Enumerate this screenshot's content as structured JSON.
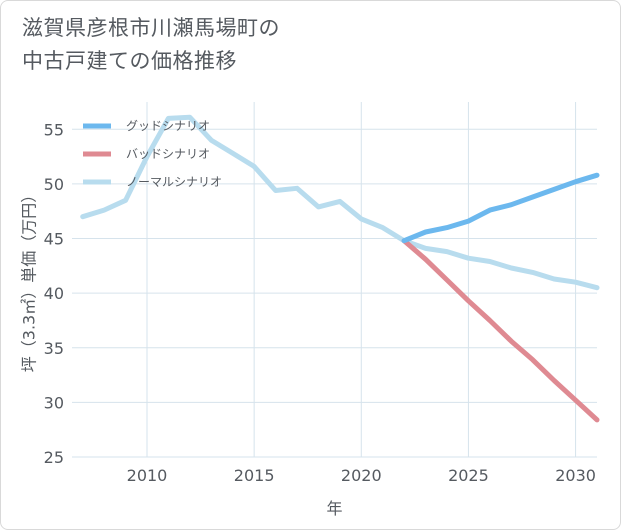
{
  "title_lines": [
    "滋賀県彦根市川瀬馬場町の",
    "中古戸建ての価格推移"
  ],
  "chart_data": {
    "type": "line",
    "xlabel": "年",
    "ylabel": "坪（3.3㎡）単価（万円）",
    "xlim": [
      2006.5,
      2031
    ],
    "ylim": [
      25,
      57.5
    ],
    "x_ticks": [
      2010,
      2015,
      2020,
      2025,
      2030
    ],
    "y_ticks": [
      25,
      30,
      35,
      40,
      45,
      50,
      55
    ],
    "grid": true,
    "legend_position": "top-left",
    "series": [
      {
        "name": "グッドシナリオ",
        "color": "#6cb8ee",
        "points": [
          [
            2022,
            44.8
          ],
          [
            2023,
            45.6
          ],
          [
            2024,
            46.0
          ],
          [
            2025,
            46.6
          ],
          [
            2026,
            47.6
          ],
          [
            2027,
            48.1
          ],
          [
            2028,
            48.8
          ],
          [
            2029,
            49.5
          ],
          [
            2030,
            50.2
          ],
          [
            2031,
            50.8
          ]
        ]
      },
      {
        "name": "バッドシナリオ",
        "color": "#df8a92",
        "points": [
          [
            2022,
            44.8
          ],
          [
            2023,
            43.1
          ],
          [
            2024,
            41.2
          ],
          [
            2025,
            39.3
          ],
          [
            2026,
            37.5
          ],
          [
            2027,
            35.6
          ],
          [
            2028,
            33.9
          ],
          [
            2029,
            32.0
          ],
          [
            2030,
            30.2
          ],
          [
            2031,
            28.4
          ]
        ]
      },
      {
        "name": "ノーマルシナリオ",
        "color": "#b8dcee",
        "points": [
          [
            2007,
            47.0
          ],
          [
            2008,
            47.6
          ],
          [
            2009,
            48.5
          ],
          [
            2010,
            52.5
          ],
          [
            2011,
            56.0
          ],
          [
            2012,
            56.1
          ],
          [
            2013,
            54.0
          ],
          [
            2014,
            52.8
          ],
          [
            2015,
            51.6
          ],
          [
            2016,
            49.4
          ],
          [
            2017,
            49.6
          ],
          [
            2018,
            47.9
          ],
          [
            2019,
            48.4
          ],
          [
            2020,
            46.8
          ],
          [
            2021,
            46.0
          ],
          [
            2022,
            44.8
          ],
          [
            2023,
            44.1
          ],
          [
            2024,
            43.8
          ],
          [
            2025,
            43.2
          ],
          [
            2026,
            42.9
          ],
          [
            2027,
            42.3
          ],
          [
            2028,
            41.9
          ],
          [
            2029,
            41.3
          ],
          [
            2030,
            41.0
          ],
          [
            2031,
            40.5
          ]
        ]
      }
    ]
  }
}
